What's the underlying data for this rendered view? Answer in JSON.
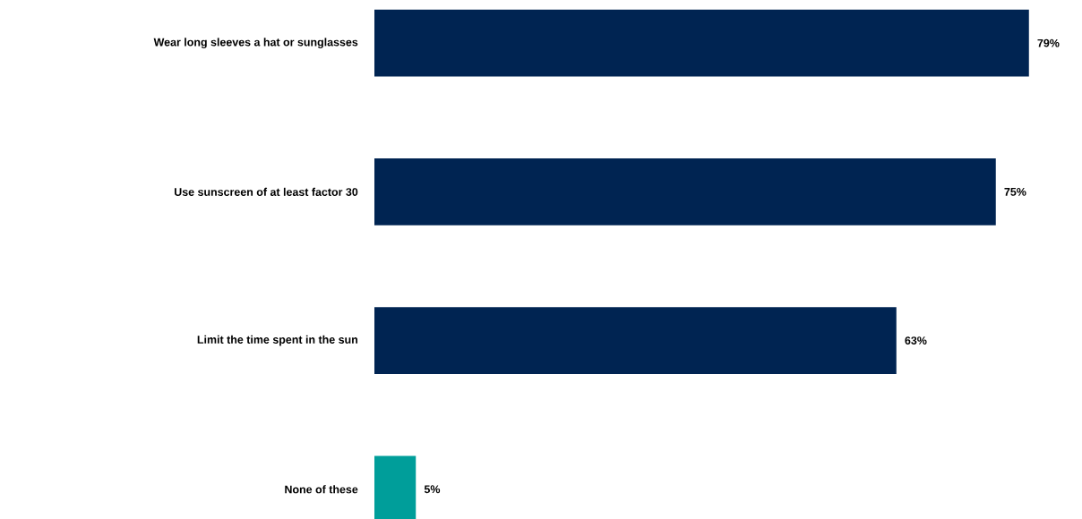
{
  "chart_data": {
    "type": "bar",
    "orientation": "horizontal",
    "categories": [
      "Wear long sleeves a hat or sunglasses",
      "Use sunscreen of at least factor 30",
      "Limit the time spent in the sun",
      "None of these"
    ],
    "values": [
      79,
      75,
      63,
      5
    ],
    "colors": [
      "#002452",
      "#002452",
      "#002452",
      "#009e9a"
    ],
    "value_labels": [
      "79%",
      "75%",
      "63%",
      "5%"
    ]
  }
}
